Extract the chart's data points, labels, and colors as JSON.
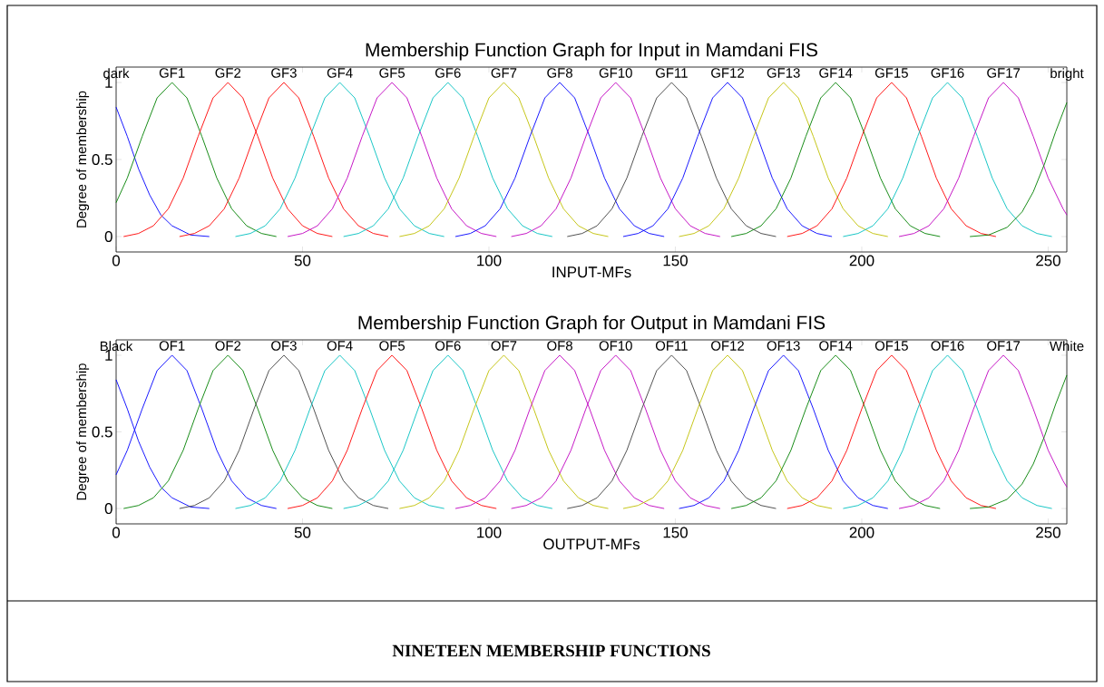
{
  "chart_data": [
    {
      "type": "line",
      "title": "Membership Function Graph for Input in Mamdani FIS",
      "xlabel": "INPUT-MFs",
      "ylabel": "Degree of membership",
      "xlim": [
        0,
        255
      ],
      "ylim": [
        -0.1,
        1.1
      ],
      "xticks": [
        0,
        50,
        100,
        150,
        200,
        250
      ],
      "yticks": [
        0,
        0.5,
        1
      ],
      "series": [
        {
          "name": "dark",
          "color": "#0000ff",
          "x": [
            0,
            3,
            6,
            9,
            12,
            15,
            20,
            25
          ],
          "values": [
            0.84,
            0.65,
            0.44,
            0.27,
            0.14,
            0.07,
            0.01,
            0
          ]
        },
        {
          "name": "GF1",
          "color": "#008000",
          "x": [
            0,
            3,
            7,
            11,
            15,
            19,
            23,
            27,
            31,
            35,
            39,
            43
          ],
          "values": [
            0.22,
            0.38,
            0.65,
            0.9,
            1,
            0.9,
            0.65,
            0.38,
            0.18,
            0.07,
            0.02,
            0
          ]
        },
        {
          "name": "GF2",
          "color": "#ff0000",
          "x": [
            2,
            6,
            10,
            14,
            18,
            22,
            26,
            30,
            34,
            38,
            42,
            46,
            50,
            54,
            58
          ],
          "values": [
            0,
            0.02,
            0.07,
            0.18,
            0.38,
            0.65,
            0.9,
            1,
            0.9,
            0.65,
            0.38,
            0.18,
            0.07,
            0.02,
            0
          ]
        },
        {
          "name": "GF3",
          "color": "#ff0000",
          "x": [
            17,
            21,
            25,
            29,
            33,
            37,
            41,
            45,
            49,
            53,
            57,
            61,
            65,
            69,
            73
          ],
          "values": [
            0,
            0.02,
            0.07,
            0.18,
            0.38,
            0.65,
            0.9,
            1,
            0.9,
            0.65,
            0.38,
            0.18,
            0.07,
            0.02,
            0
          ]
        },
        {
          "name": "GF4",
          "color": "#00bfbf",
          "x": [
            32,
            36,
            40,
            44,
            48,
            52,
            56,
            60,
            64,
            68,
            72,
            76,
            80,
            84,
            88
          ],
          "values": [
            0,
            0.02,
            0.07,
            0.18,
            0.38,
            0.65,
            0.9,
            1,
            0.9,
            0.65,
            0.38,
            0.18,
            0.07,
            0.02,
            0
          ]
        },
        {
          "name": "GF5",
          "color": "#bf00bf",
          "x": [
            46,
            50,
            54,
            58,
            62,
            66,
            70,
            74,
            78,
            82,
            86,
            90,
            94,
            98,
            102
          ],
          "values": [
            0,
            0.02,
            0.07,
            0.18,
            0.38,
            0.65,
            0.9,
            1,
            0.9,
            0.65,
            0.38,
            0.18,
            0.07,
            0.02,
            0
          ]
        },
        {
          "name": "GF6",
          "color": "#00bfbf",
          "x": [
            61,
            65,
            69,
            73,
            77,
            81,
            85,
            89,
            93,
            97,
            101,
            105,
            109,
            113,
            117
          ],
          "values": [
            0,
            0.02,
            0.07,
            0.18,
            0.38,
            0.65,
            0.9,
            1,
            0.9,
            0.65,
            0.38,
            0.18,
            0.07,
            0.02,
            0
          ]
        },
        {
          "name": "GF7",
          "color": "#bfbf00",
          "x": [
            76,
            80,
            84,
            88,
            92,
            96,
            100,
            104,
            108,
            112,
            116,
            120,
            124,
            128,
            132
          ],
          "values": [
            0,
            0.02,
            0.07,
            0.18,
            0.38,
            0.65,
            0.9,
            1,
            0.9,
            0.65,
            0.38,
            0.18,
            0.07,
            0.02,
            0
          ]
        },
        {
          "name": "GF8",
          "color": "#0000ff",
          "x": [
            91,
            95,
            99,
            103,
            107,
            111,
            115,
            119,
            123,
            127,
            131,
            135,
            139,
            143,
            147
          ],
          "values": [
            0,
            0.02,
            0.07,
            0.18,
            0.38,
            0.65,
            0.9,
            1,
            0.9,
            0.65,
            0.38,
            0.18,
            0.07,
            0.02,
            0
          ]
        },
        {
          "name": "GF10",
          "color": "#bf00bf",
          "x": [
            106,
            110,
            114,
            118,
            122,
            126,
            130,
            134,
            138,
            142,
            146,
            150,
            154,
            158,
            162
          ],
          "values": [
            0,
            0.02,
            0.07,
            0.18,
            0.38,
            0.65,
            0.9,
            1,
            0.9,
            0.65,
            0.38,
            0.18,
            0.07,
            0.02,
            0
          ]
        },
        {
          "name": "GF11",
          "color": "#404040",
          "x": [
            121,
            125,
            129,
            133,
            137,
            141,
            145,
            149,
            153,
            157,
            161,
            165,
            169,
            173,
            177
          ],
          "values": [
            0,
            0.02,
            0.07,
            0.18,
            0.38,
            0.65,
            0.9,
            1,
            0.9,
            0.65,
            0.38,
            0.18,
            0.07,
            0.02,
            0
          ]
        },
        {
          "name": "GF12",
          "color": "#0000ff",
          "x": [
            136,
            140,
            144,
            148,
            152,
            156,
            160,
            164,
            168,
            172,
            176,
            180,
            184,
            188,
            192
          ],
          "values": [
            0,
            0.02,
            0.07,
            0.18,
            0.38,
            0.65,
            0.9,
            1,
            0.9,
            0.65,
            0.38,
            0.18,
            0.07,
            0.02,
            0
          ]
        },
        {
          "name": "GF13",
          "color": "#bfbf00",
          "x": [
            151,
            155,
            159,
            163,
            167,
            171,
            175,
            179,
            183,
            187,
            191,
            195,
            199,
            203,
            207
          ],
          "values": [
            0,
            0.02,
            0.07,
            0.18,
            0.38,
            0.65,
            0.9,
            1,
            0.9,
            0.65,
            0.38,
            0.18,
            0.07,
            0.02,
            0
          ]
        },
        {
          "name": "GF14",
          "color": "#008000",
          "x": [
            165,
            169,
            173,
            177,
            181,
            185,
            189,
            193,
            197,
            201,
            205,
            209,
            213,
            217,
            221
          ],
          "values": [
            0,
            0.02,
            0.07,
            0.18,
            0.38,
            0.65,
            0.9,
            1,
            0.9,
            0.65,
            0.38,
            0.18,
            0.07,
            0.02,
            0
          ]
        },
        {
          "name": "GF15",
          "color": "#ff0000",
          "x": [
            180,
            184,
            188,
            192,
            196,
            200,
            204,
            208,
            212,
            216,
            220,
            224,
            228,
            232,
            236
          ],
          "values": [
            0,
            0.02,
            0.07,
            0.18,
            0.38,
            0.65,
            0.9,
            1,
            0.9,
            0.65,
            0.38,
            0.18,
            0.07,
            0.02,
            0
          ]
        },
        {
          "name": "GF16",
          "color": "#00bfbf",
          "x": [
            195,
            199,
            203,
            207,
            211,
            215,
            219,
            223,
            227,
            231,
            235,
            239,
            243,
            247,
            251
          ],
          "values": [
            0,
            0.02,
            0.07,
            0.18,
            0.38,
            0.65,
            0.9,
            1,
            0.9,
            0.65,
            0.38,
            0.18,
            0.07,
            0.02,
            0
          ]
        },
        {
          "name": "GF17",
          "color": "#bf00bf",
          "x": [
            210,
            214,
            218,
            222,
            226,
            230,
            234,
            238,
            242,
            246,
            250,
            254,
            255
          ],
          "values": [
            0,
            0.02,
            0.07,
            0.18,
            0.38,
            0.65,
            0.9,
            1,
            0.9,
            0.65,
            0.38,
            0.18,
            0.14
          ]
        },
        {
          "name": "bright",
          "color": "#008000",
          "x": [
            229,
            234,
            239,
            243,
            246,
            249,
            252,
            255
          ],
          "values": [
            0,
            0.01,
            0.06,
            0.16,
            0.29,
            0.47,
            0.68,
            0.87
          ]
        }
      ]
    },
    {
      "type": "line",
      "title": "Membership Function Graph for Output in Mamdani FIS",
      "xlabel": "OUTPUT-MFs",
      "ylabel": "Degree of membership",
      "xlim": [
        0,
        255
      ],
      "ylim": [
        -0.1,
        1.1
      ],
      "xticks": [
        0,
        50,
        100,
        150,
        200,
        250
      ],
      "yticks": [
        0,
        0.5,
        1
      ],
      "annotations": [
        "NINETEEN MEMBERSHIP FUNCTIONS"
      ],
      "series": [
        {
          "name": "Black",
          "color": "#0000ff",
          "x": [
            0,
            3,
            6,
            9,
            12,
            15,
            20,
            25
          ],
          "values": [
            0.84,
            0.65,
            0.44,
            0.27,
            0.14,
            0.07,
            0.01,
            0
          ]
        },
        {
          "name": "OF1",
          "color": "#0000ff",
          "x": [
            0,
            3,
            7,
            11,
            15,
            19,
            23,
            27,
            31,
            35,
            39,
            43
          ],
          "values": [
            0.22,
            0.38,
            0.65,
            0.9,
            1,
            0.9,
            0.65,
            0.38,
            0.18,
            0.07,
            0.02,
            0
          ]
        },
        {
          "name": "OF2",
          "color": "#008000",
          "x": [
            2,
            6,
            10,
            14,
            18,
            22,
            26,
            30,
            34,
            38,
            42,
            46,
            50,
            54,
            58
          ],
          "values": [
            0,
            0.02,
            0.07,
            0.18,
            0.38,
            0.65,
            0.9,
            1,
            0.9,
            0.65,
            0.38,
            0.18,
            0.07,
            0.02,
            0
          ]
        },
        {
          "name": "OF3",
          "color": "#404040",
          "x": [
            17,
            21,
            25,
            29,
            33,
            37,
            41,
            45,
            49,
            53,
            57,
            61,
            65,
            69,
            73
          ],
          "values": [
            0,
            0.02,
            0.07,
            0.18,
            0.38,
            0.65,
            0.9,
            1,
            0.9,
            0.65,
            0.38,
            0.18,
            0.07,
            0.02,
            0
          ]
        },
        {
          "name": "OF4",
          "color": "#00bfbf",
          "x": [
            32,
            36,
            40,
            44,
            48,
            52,
            56,
            60,
            64,
            68,
            72,
            76,
            80,
            84,
            88
          ],
          "values": [
            0,
            0.02,
            0.07,
            0.18,
            0.38,
            0.65,
            0.9,
            1,
            0.9,
            0.65,
            0.38,
            0.18,
            0.07,
            0.02,
            0
          ]
        },
        {
          "name": "OF5",
          "color": "#ff0000",
          "x": [
            46,
            50,
            54,
            58,
            62,
            66,
            70,
            74,
            78,
            82,
            86,
            90,
            94,
            98,
            102
          ],
          "values": [
            0,
            0.02,
            0.07,
            0.18,
            0.38,
            0.65,
            0.9,
            1,
            0.9,
            0.65,
            0.38,
            0.18,
            0.07,
            0.02,
            0
          ]
        },
        {
          "name": "OF6",
          "color": "#00bfbf",
          "x": [
            61,
            65,
            69,
            73,
            77,
            81,
            85,
            89,
            93,
            97,
            101,
            105,
            109,
            113,
            117
          ],
          "values": [
            0,
            0.02,
            0.07,
            0.18,
            0.38,
            0.65,
            0.9,
            1,
            0.9,
            0.65,
            0.38,
            0.18,
            0.07,
            0.02,
            0
          ]
        },
        {
          "name": "OF7",
          "color": "#bfbf00",
          "x": [
            76,
            80,
            84,
            88,
            92,
            96,
            100,
            104,
            108,
            112,
            116,
            120,
            124,
            128,
            132
          ],
          "values": [
            0,
            0.02,
            0.07,
            0.18,
            0.38,
            0.65,
            0.9,
            1,
            0.9,
            0.65,
            0.38,
            0.18,
            0.07,
            0.02,
            0
          ]
        },
        {
          "name": "OF8",
          "color": "#bf00bf",
          "x": [
            91,
            95,
            99,
            103,
            107,
            111,
            115,
            119,
            123,
            127,
            131,
            135,
            139,
            143,
            147
          ],
          "values": [
            0,
            0.02,
            0.07,
            0.18,
            0.38,
            0.65,
            0.9,
            1,
            0.9,
            0.65,
            0.38,
            0.18,
            0.07,
            0.02,
            0
          ]
        },
        {
          "name": "OF10",
          "color": "#bf00bf",
          "x": [
            106,
            110,
            114,
            118,
            122,
            126,
            130,
            134,
            138,
            142,
            146,
            150,
            154,
            158,
            162
          ],
          "values": [
            0,
            0.02,
            0.07,
            0.18,
            0.38,
            0.65,
            0.9,
            1,
            0.9,
            0.65,
            0.38,
            0.18,
            0.07,
            0.02,
            0
          ]
        },
        {
          "name": "OF11",
          "color": "#404040",
          "x": [
            121,
            125,
            129,
            133,
            137,
            141,
            145,
            149,
            153,
            157,
            161,
            165,
            169,
            173,
            177
          ],
          "values": [
            0,
            0.02,
            0.07,
            0.18,
            0.38,
            0.65,
            0.9,
            1,
            0.9,
            0.65,
            0.38,
            0.18,
            0.07,
            0.02,
            0
          ]
        },
        {
          "name": "OF12",
          "color": "#bfbf00",
          "x": [
            136,
            140,
            144,
            148,
            152,
            156,
            160,
            164,
            168,
            172,
            176,
            180,
            184,
            188,
            192
          ],
          "values": [
            0,
            0.02,
            0.07,
            0.18,
            0.38,
            0.65,
            0.9,
            1,
            0.9,
            0.65,
            0.38,
            0.18,
            0.07,
            0.02,
            0
          ]
        },
        {
          "name": "OF13",
          "color": "#0000ff",
          "x": [
            151,
            155,
            159,
            163,
            167,
            171,
            175,
            179,
            183,
            187,
            191,
            195,
            199,
            203,
            207
          ],
          "values": [
            0,
            0.02,
            0.07,
            0.18,
            0.38,
            0.65,
            0.9,
            1,
            0.9,
            0.65,
            0.38,
            0.18,
            0.07,
            0.02,
            0
          ]
        },
        {
          "name": "OF14",
          "color": "#008000",
          "x": [
            165,
            169,
            173,
            177,
            181,
            185,
            189,
            193,
            197,
            201,
            205,
            209,
            213,
            217,
            221
          ],
          "values": [
            0,
            0.02,
            0.07,
            0.18,
            0.38,
            0.65,
            0.9,
            1,
            0.9,
            0.65,
            0.38,
            0.18,
            0.07,
            0.02,
            0
          ]
        },
        {
          "name": "OF15",
          "color": "#ff0000",
          "x": [
            180,
            184,
            188,
            192,
            196,
            200,
            204,
            208,
            212,
            216,
            220,
            224,
            228,
            232,
            236
          ],
          "values": [
            0,
            0.02,
            0.07,
            0.18,
            0.38,
            0.65,
            0.9,
            1,
            0.9,
            0.65,
            0.38,
            0.18,
            0.07,
            0.02,
            0
          ]
        },
        {
          "name": "OF16",
          "color": "#00bfbf",
          "x": [
            195,
            199,
            203,
            207,
            211,
            215,
            219,
            223,
            227,
            231,
            235,
            239,
            243,
            247,
            251
          ],
          "values": [
            0,
            0.02,
            0.07,
            0.18,
            0.38,
            0.65,
            0.9,
            1,
            0.9,
            0.65,
            0.38,
            0.18,
            0.07,
            0.02,
            0
          ]
        },
        {
          "name": "OF17",
          "color": "#bf00bf",
          "x": [
            210,
            214,
            218,
            222,
            226,
            230,
            234,
            238,
            242,
            246,
            250,
            254,
            255
          ],
          "values": [
            0,
            0.02,
            0.07,
            0.18,
            0.38,
            0.65,
            0.9,
            1,
            0.9,
            0.65,
            0.38,
            0.18,
            0.14
          ]
        },
        {
          "name": "White",
          "color": "#008000",
          "x": [
            229,
            234,
            239,
            243,
            246,
            249,
            252,
            255
          ],
          "values": [
            0,
            0.01,
            0.06,
            0.16,
            0.29,
            0.47,
            0.68,
            0.87
          ]
        }
      ]
    }
  ]
}
